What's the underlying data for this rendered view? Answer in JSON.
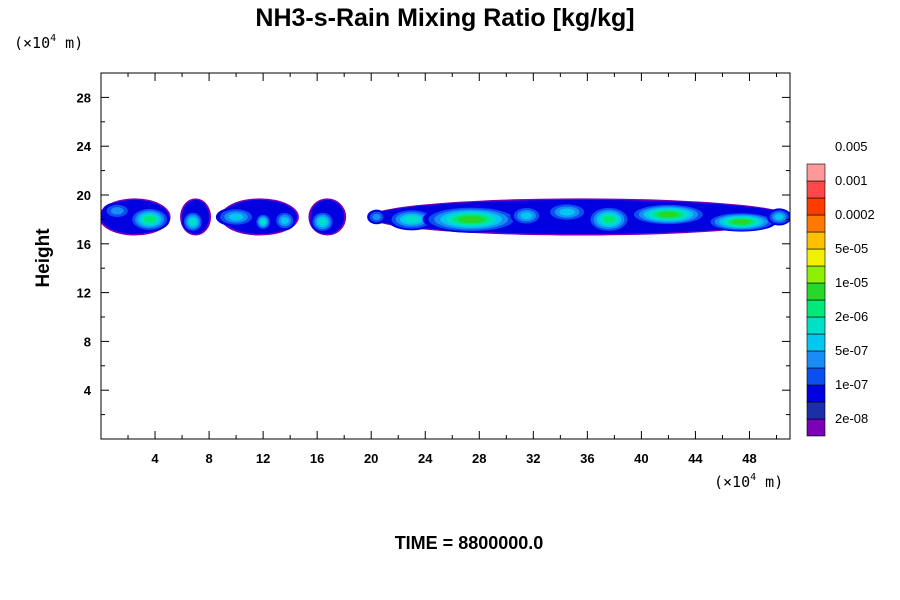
{
  "chart_data": {
    "type": "heatmap",
    "title": "NH3-s-Rain Mixing Ratio [kg/kg]",
    "xunit": "(×10^4 m)",
    "yunit": "(×10^4 m)",
    "ylabel": "Height",
    "footer": "TIME = 8800000.0",
    "xlim": [
      0,
      51
    ],
    "ylim": [
      0,
      30
    ],
    "xticks": [
      "4",
      "8",
      "12",
      "16",
      "20",
      "24",
      "28",
      "32",
      "36",
      "40",
      "44",
      "48"
    ],
    "yticks": [
      "4",
      "8",
      "12",
      "16",
      "20",
      "24",
      "28"
    ],
    "colorbar": {
      "colors": [
        "#7b00b8",
        "#1a2fa8",
        "#0000e0",
        "#0a50f0",
        "#1a8cf5",
        "#00c8f0",
        "#00e0c8",
        "#00e878",
        "#28d828",
        "#8cf000",
        "#f0f000",
        "#ffc000",
        "#ff7800",
        "#ff3c00",
        "#ff4848",
        "#ff9898"
      ],
      "labels": [
        "2e-08",
        "1e-07",
        "5e-07",
        "2e-06",
        "1e-05",
        "5e-05",
        "0.0002",
        "0.001",
        "0.005"
      ]
    },
    "cloud_band": {
      "y_range_approx": [
        16.5,
        20
      ],
      "segments_x": [
        [
          0,
          5
        ],
        [
          6,
          8
        ],
        [
          9,
          14.5
        ],
        [
          15.5,
          18
        ],
        [
          20,
          51
        ]
      ]
    },
    "blobs": [
      {
        "x": 3.6,
        "y": 18.0,
        "sx": 1.5,
        "sy": 1.0,
        "level": 7
      },
      {
        "x": 1.2,
        "y": 18.7,
        "sx": 1.1,
        "sy": 0.7,
        "level": 4
      },
      {
        "x": 6.8,
        "y": 17.8,
        "sx": 0.8,
        "sy": 0.9,
        "level": 6
      },
      {
        "x": 10.0,
        "y": 18.2,
        "sx": 1.5,
        "sy": 0.8,
        "level": 5
      },
      {
        "x": 12.0,
        "y": 17.8,
        "sx": 0.6,
        "sy": 0.7,
        "level": 6
      },
      {
        "x": 13.6,
        "y": 17.9,
        "sx": 0.8,
        "sy": 0.8,
        "level": 5
      },
      {
        "x": 16.4,
        "y": 17.8,
        "sx": 0.9,
        "sy": 0.9,
        "level": 6
      },
      {
        "x": 20.4,
        "y": 18.2,
        "sx": 0.7,
        "sy": 0.6,
        "level": 4
      },
      {
        "x": 23.0,
        "y": 18.0,
        "sx": 1.8,
        "sy": 0.9,
        "level": 6
      },
      {
        "x": 27.4,
        "y": 18.0,
        "sx": 3.6,
        "sy": 1.1,
        "level": 8
      },
      {
        "x": 31.5,
        "y": 18.3,
        "sx": 1.2,
        "sy": 0.8,
        "level": 5
      },
      {
        "x": 34.5,
        "y": 18.6,
        "sx": 1.6,
        "sy": 0.8,
        "level": 5
      },
      {
        "x": 37.6,
        "y": 18.0,
        "sx": 1.6,
        "sy": 1.1,
        "level": 7
      },
      {
        "x": 42.0,
        "y": 18.4,
        "sx": 2.9,
        "sy": 0.9,
        "level": 8
      },
      {
        "x": 47.4,
        "y": 17.8,
        "sx": 2.6,
        "sy": 0.8,
        "level": 8
      },
      {
        "x": 50.2,
        "y": 18.2,
        "sx": 0.9,
        "sy": 0.7,
        "level": 5
      }
    ]
  }
}
